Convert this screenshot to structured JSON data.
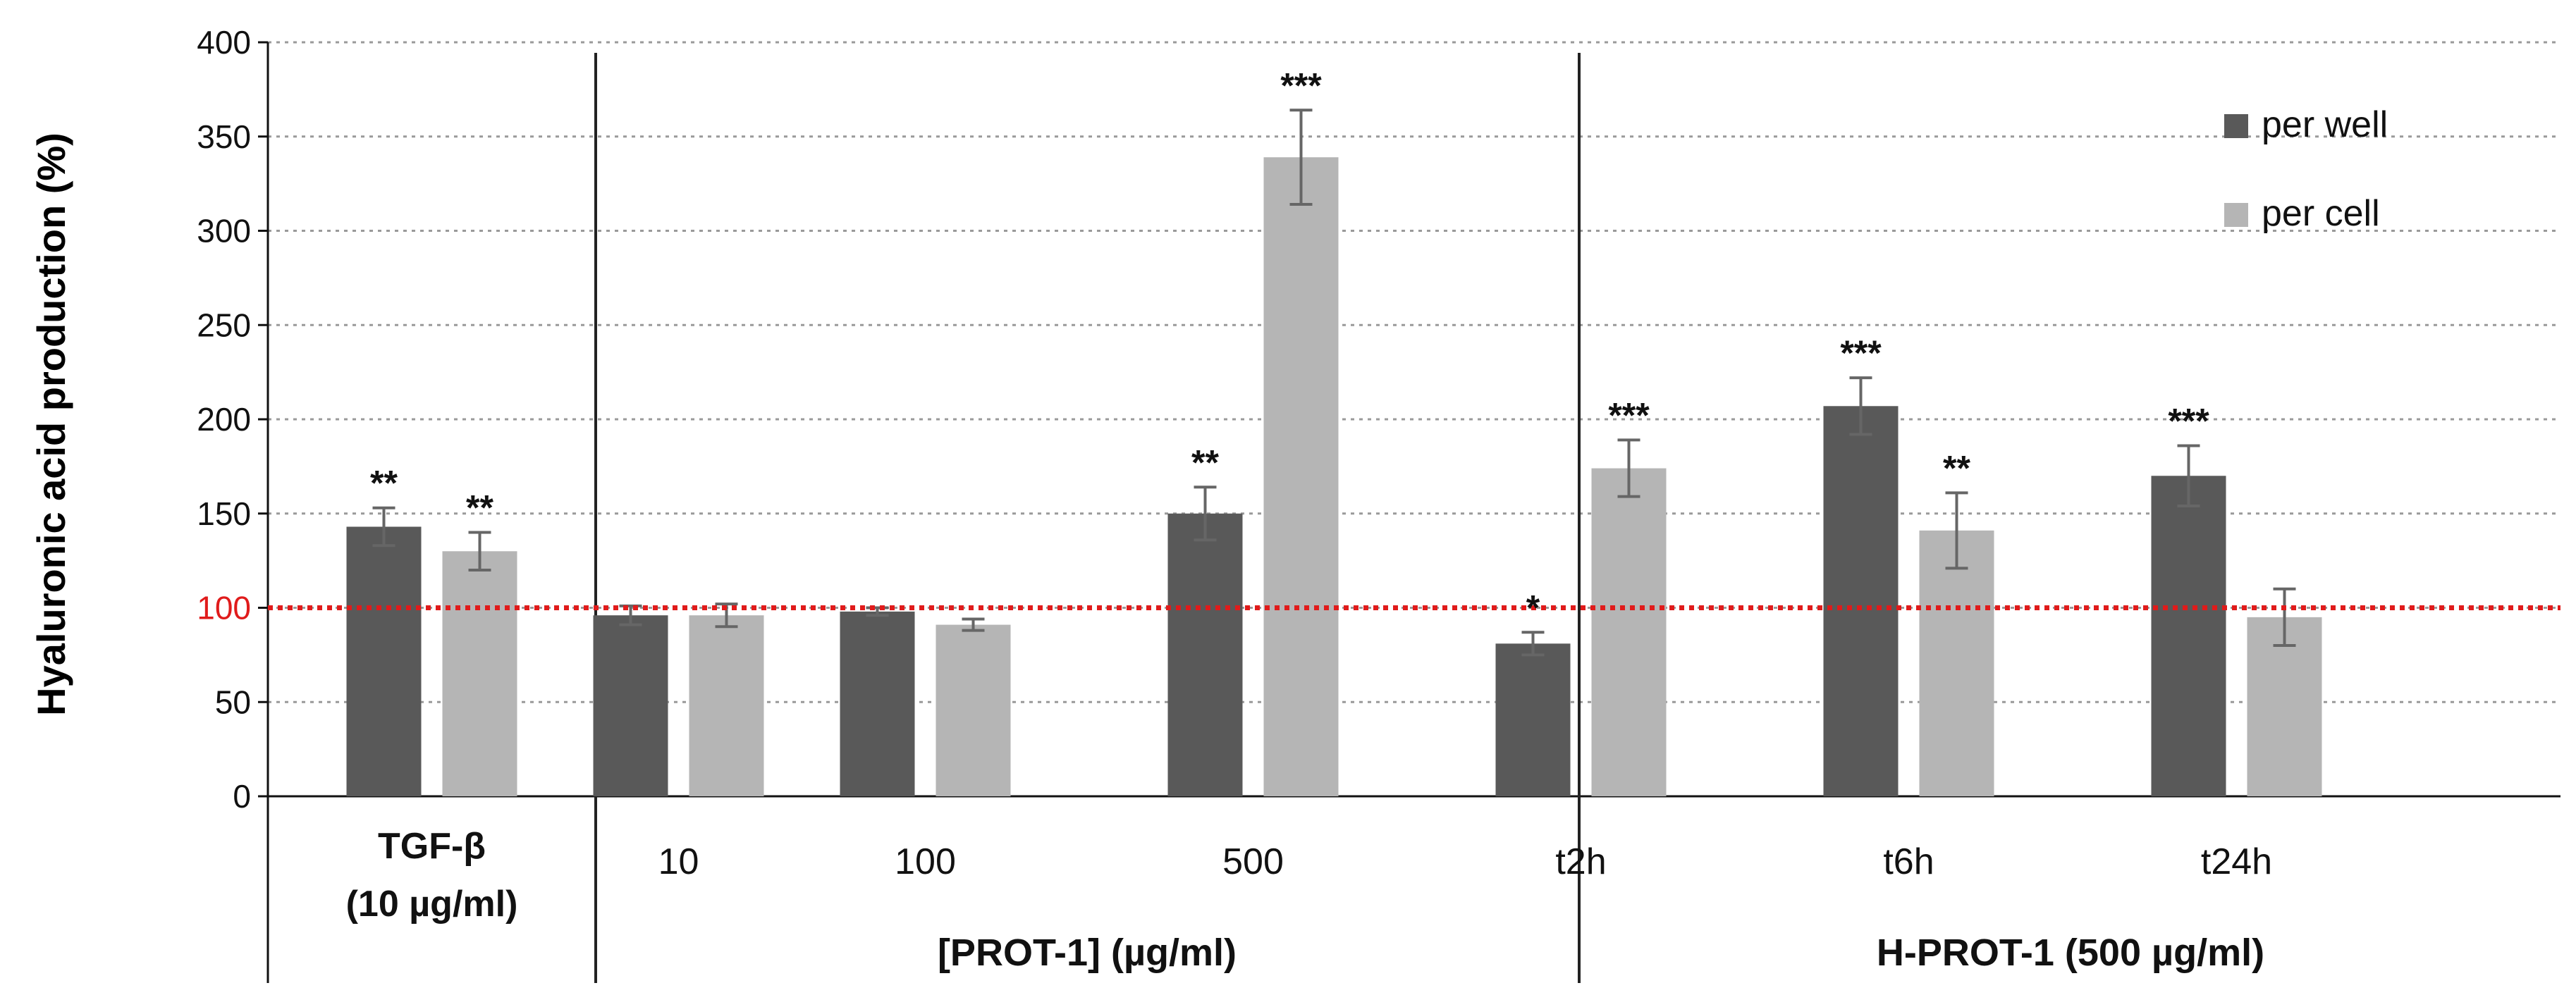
{
  "chart_data": {
    "type": "bar",
    "ylabel": "Hyaluronic acid production (%)",
    "ylim": [
      0,
      400
    ],
    "yticks": [
      "0",
      "50",
      "100",
      "150",
      "200",
      "250",
      "300",
      "350",
      "400"
    ],
    "reference_line": {
      "value": 100,
      "color": "#e01b1b",
      "style": "dotted"
    },
    "grid": true,
    "colors": {
      "per_well": "#595959",
      "per_cell": "#b5b5b5",
      "error": "#666666"
    },
    "categories": [
      "TGF-β",
      "10",
      "100",
      "500",
      "t2h",
      "t6h",
      "t24h"
    ],
    "first_category_sublabel": "(10 µg/ml)",
    "groups": [
      {
        "label": "[PROT-1] (µg/ml)"
      },
      {
        "label": "H-PROT-1 (500 µg/ml)"
      }
    ],
    "series": [
      {
        "name": "per well",
        "values": [
          143,
          96,
          98,
          150,
          81,
          207,
          170
        ],
        "errors": [
          10,
          5,
          2,
          14,
          6,
          15,
          16
        ],
        "significance": [
          "**",
          "",
          "",
          "**",
          "*",
          "***",
          "***"
        ]
      },
      {
        "name": "per cell",
        "values": [
          130,
          96,
          91,
          339,
          174,
          141,
          95
        ],
        "errors": [
          10,
          6,
          3,
          25,
          15,
          20,
          15
        ],
        "significance": [
          "**",
          "",
          "",
          "***",
          "***",
          "**",
          ""
        ]
      }
    ],
    "legend": {
      "position": "top-right",
      "entries": [
        "per well",
        "per cell"
      ]
    }
  }
}
